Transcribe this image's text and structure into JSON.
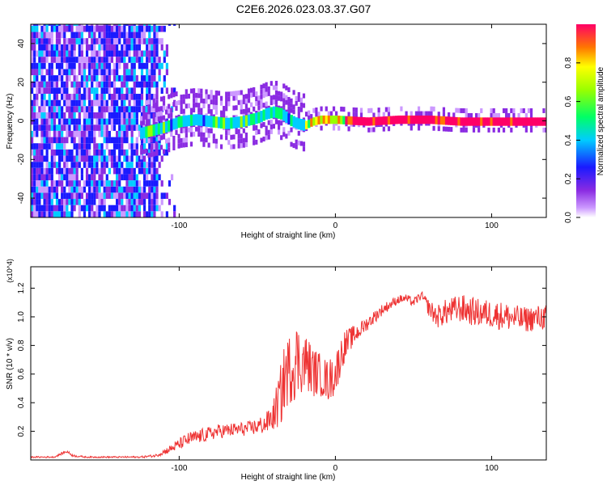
{
  "title": "C2E6.2026.023.03.37.G07",
  "chart_data": [
    {
      "type": "heatmap",
      "title": "C2E6.2026.023.03.37.G07",
      "xlabel": "Height of straight line (km)",
      "ylabel": "Frequency (Hz)",
      "xlim": [
        -195,
        135
      ],
      "ylim": [
        -50,
        50
      ],
      "x_ticks": [
        -100,
        0,
        100
      ],
      "y_ticks": [
        -40,
        -20,
        0,
        20,
        40
      ],
      "colorbar": {
        "label": "Normalized spectral amplitude",
        "range": [
          0,
          1
        ],
        "ticks": [
          "0.0",
          "0.2",
          "0.4",
          "0.6",
          "0.8"
        ],
        "tick_values": [
          0,
          0.2,
          0.4,
          0.6,
          0.8
        ]
      },
      "ridge": {
        "x": [
          -125,
          -110,
          -100,
          -90,
          -80,
          -70,
          -60,
          -50,
          -45,
          -40,
          -35,
          -30,
          -25,
          -20,
          -15,
          -10,
          0,
          20,
          40,
          60,
          80,
          100,
          120,
          135
        ],
        "y": [
          -6,
          -3,
          0,
          1,
          0,
          -1,
          0,
          2,
          4,
          5,
          4,
          1,
          -1,
          -2,
          0,
          1,
          1,
          0,
          1,
          1,
          0,
          0,
          0,
          0
        ]
      }
    },
    {
      "type": "line",
      "xlabel": "Height of straight line (km)",
      "ylabel": "SNR (10 * v/v)",
      "y_scale_label": "(x10^4)",
      "xlim": [
        -195,
        135
      ],
      "ylim": [
        0,
        1.35
      ],
      "x_ticks": [
        -100,
        0,
        100
      ],
      "y_ticks": [
        0.2,
        0.4,
        0.6,
        0.8,
        1.0,
        1.2
      ],
      "y_tick_labels": [
        "0.2",
        "0.4",
        "0.6",
        "0.8",
        "1.0",
        "1.2"
      ],
      "series": [
        {
          "name": "SNR",
          "color": "#ee3333",
          "x": [
            -195,
            -180,
            -172,
            -168,
            -160,
            -140,
            -125,
            -115,
            -105,
            -95,
            -85,
            -75,
            -65,
            -55,
            -45,
            -40,
            -35,
            -32,
            -28,
            -25,
            -22,
            -18,
            -15,
            -10,
            -5,
            0,
            5,
            10,
            15,
            20,
            30,
            40,
            45,
            50,
            55,
            60,
            65,
            70,
            80,
            90,
            100,
            110,
            120,
            135
          ],
          "y": [
            0.02,
            0.02,
            0.06,
            0.03,
            0.02,
            0.02,
            0.02,
            0.03,
            0.08,
            0.14,
            0.17,
            0.2,
            0.21,
            0.22,
            0.25,
            0.3,
            0.45,
            0.6,
            0.65,
            0.7,
            0.68,
            0.68,
            0.62,
            0.6,
            0.55,
            0.6,
            0.78,
            0.85,
            0.9,
            0.95,
            1.05,
            1.12,
            1.13,
            1.1,
            1.15,
            1.06,
            1.0,
            1.03,
            1.06,
            1.03,
            1.02,
            1.0,
            0.98,
            1.0
          ],
          "noise_amp": [
            0.005,
            0.005,
            0.01,
            0.008,
            0.005,
            0.005,
            0.006,
            0.01,
            0.03,
            0.05,
            0.05,
            0.05,
            0.05,
            0.05,
            0.07,
            0.1,
            0.22,
            0.25,
            0.25,
            0.28,
            0.22,
            0.2,
            0.18,
            0.15,
            0.15,
            0.15,
            0.12,
            0.08,
            0.06,
            0.05,
            0.04,
            0.03,
            0.03,
            0.03,
            0.03,
            0.06,
            0.08,
            0.09,
            0.1,
            0.1,
            0.1,
            0.1,
            0.09,
            0.09
          ]
        }
      ]
    }
  ]
}
